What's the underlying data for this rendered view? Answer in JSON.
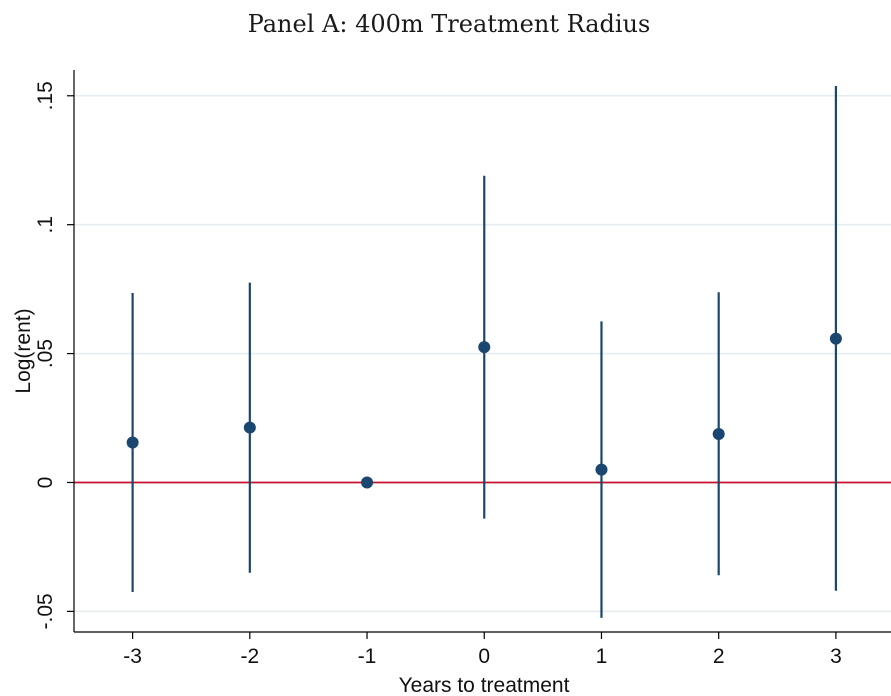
{
  "chart_data": {
    "type": "scatter",
    "title": "Panel A: 400m Treatment Radius",
    "xlabel": "Years to treatment",
    "ylabel": "Log(rent)",
    "x": [
      -3,
      -2,
      -1,
      0,
      1,
      2,
      3
    ],
    "x_tick_labels": [
      "-3",
      "-2",
      "-1",
      "0",
      "1",
      "2",
      "3"
    ],
    "y_ticks": [
      -0.05,
      0,
      0.05,
      0.1,
      0.15
    ],
    "y_tick_labels": [
      "-.05",
      "0",
      ".05",
      ".1",
      ".15"
    ],
    "xlim": [
      -3.5,
      3.47
    ],
    "ylim": [
      -0.058,
      0.16
    ],
    "series": [
      {
        "estimate": [
          0.0155,
          0.0213,
          0.0,
          0.0525,
          0.005,
          0.0188,
          0.0558
        ],
        "ci_low": [
          -0.0425,
          -0.035,
          0.0,
          -0.014,
          -0.0525,
          -0.036,
          -0.042
        ],
        "ci_high": [
          0.0735,
          0.0775,
          0.0,
          0.119,
          0.0625,
          0.0738,
          0.1538
        ]
      }
    ],
    "reference_line": {
      "y": 0,
      "color": "#c8102e"
    },
    "grid": "horizontal",
    "legend": "none",
    "colors": {
      "marker": "#1a476f",
      "ci": "#1a476f",
      "grid": "#e4ecef",
      "axis": "#000000"
    }
  }
}
